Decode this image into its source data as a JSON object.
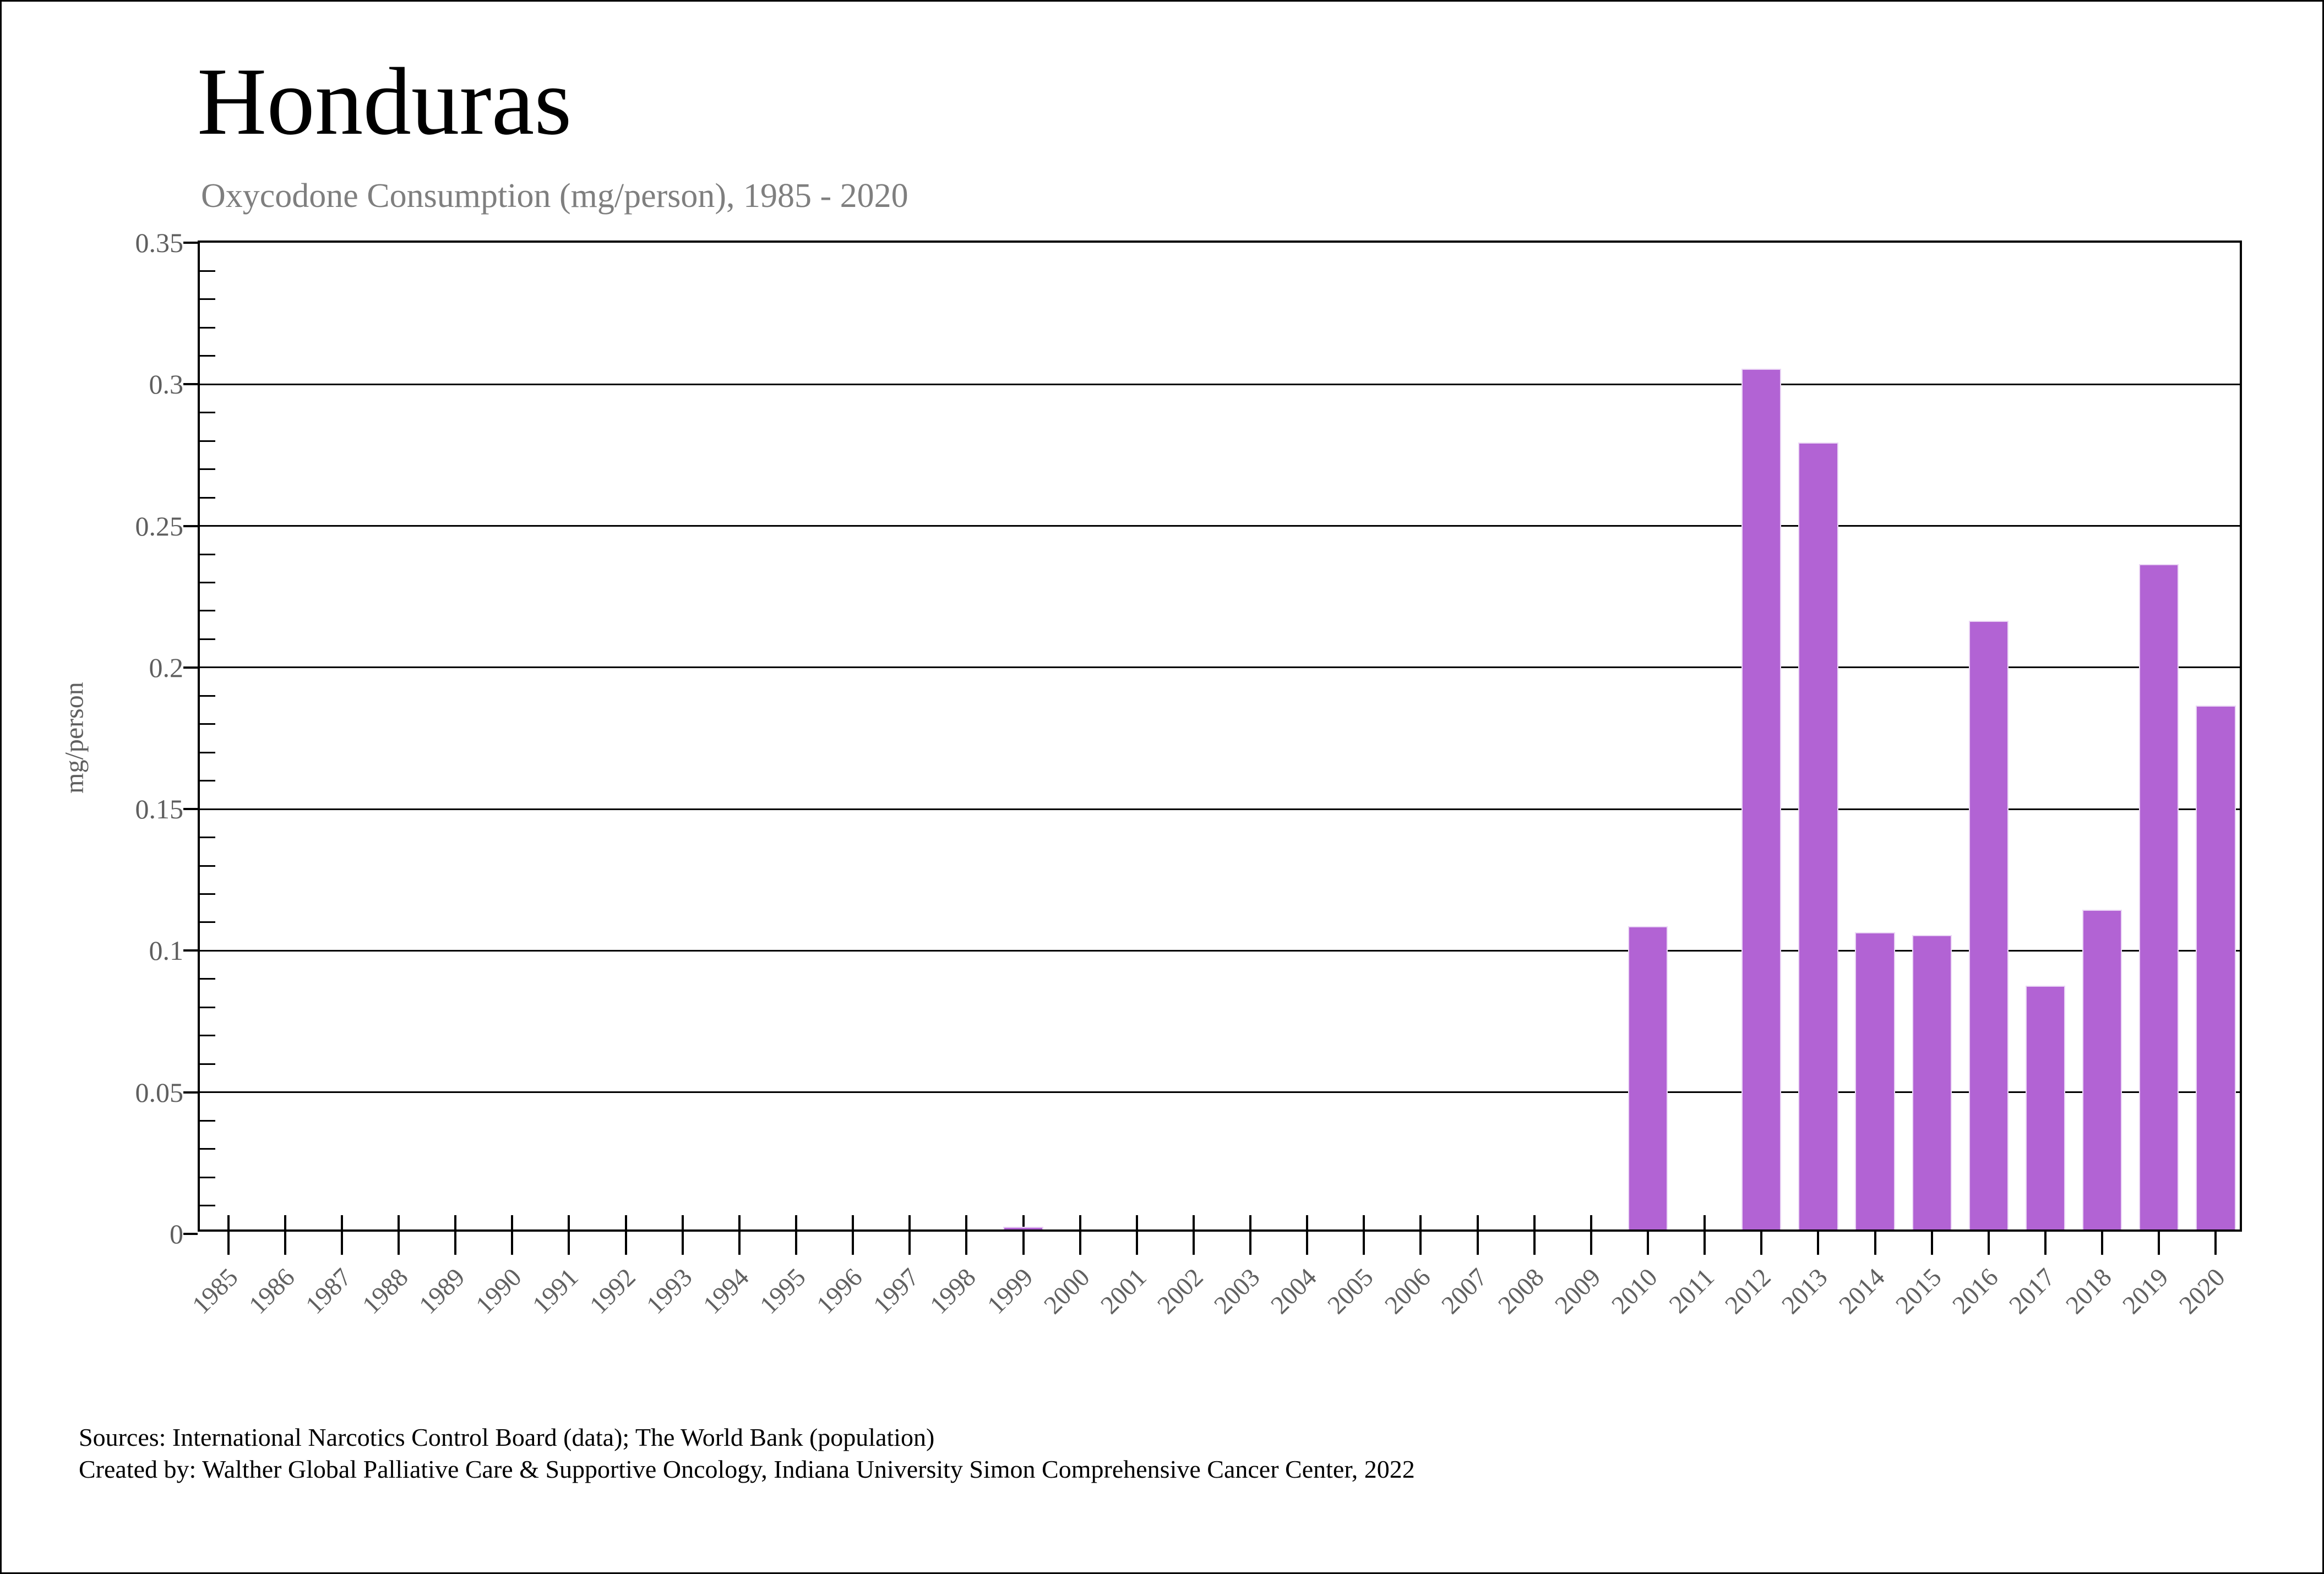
{
  "header": {
    "title": "Honduras",
    "subtitle": "Oxycodone Consumption (mg/person), 1985 - 2020"
  },
  "chart_data": {
    "type": "bar",
    "title": "Honduras",
    "subtitle": "Oxycodone Consumption (mg/person), 1985 - 2020",
    "xlabel": "",
    "ylabel": "mg/person",
    "ylim": [
      0,
      0.35
    ],
    "ytick_labels": [
      "0",
      "0.05",
      "0.1",
      "0.15",
      "0.2",
      "0.25",
      "0.3",
      "0.35"
    ],
    "ytick_minor_step": 0.01,
    "grid": "horizontal-major",
    "legend": "none",
    "bar_color": "#B263D4",
    "bar_edge_color": "#EBD7F5",
    "categories": [
      "1985",
      "1986",
      "1987",
      "1988",
      "1989",
      "1990",
      "1991",
      "1992",
      "1993",
      "1994",
      "1995",
      "1996",
      "1997",
      "1998",
      "1999",
      "2000",
      "2001",
      "2002",
      "2003",
      "2004",
      "2005",
      "2006",
      "2007",
      "2008",
      "2009",
      "2010",
      "2011",
      "2012",
      "2013",
      "2014",
      "2015",
      "2016",
      "2017",
      "2018",
      "2019",
      "2020"
    ],
    "values": [
      0,
      0,
      0,
      0,
      0,
      0,
      0,
      0,
      0,
      0,
      0,
      0,
      0,
      0,
      0.001,
      0,
      0,
      0,
      0,
      0,
      0,
      0,
      0,
      0,
      0,
      0.107,
      0,
      0.304,
      0.278,
      0.105,
      0.104,
      0.215,
      0.086,
      0.113,
      0.235,
      0.185
    ]
  },
  "footer": {
    "line1": "Sources: International Narcotics Control Board (data); The World Bank (population)",
    "line2": "Created by: Walther Global Palliative Care & Supportive Oncology, Indiana University Simon Comprehensive Cancer Center, 2022"
  },
  "colors": {
    "bar": "#B263D4",
    "subtitle_gray": "#7f7f7f",
    "tick_label_gray": "#5f5f5f",
    "axis_black": "#000000"
  }
}
